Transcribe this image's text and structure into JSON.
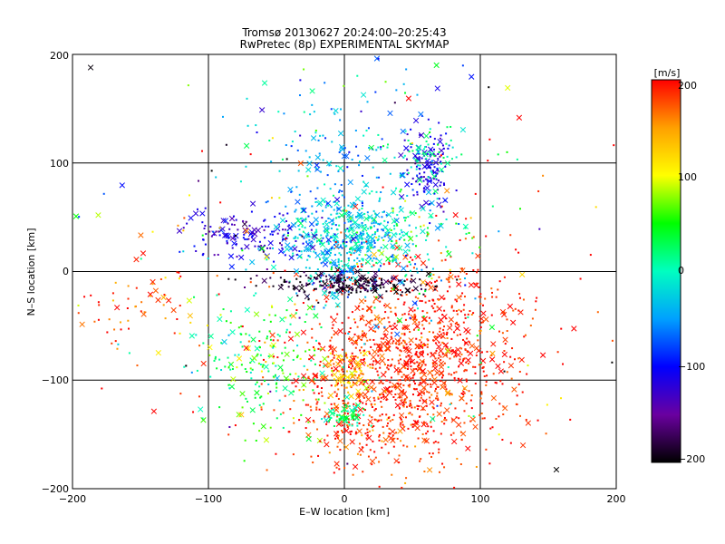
{
  "chart_data": {
    "type": "scatter",
    "title": "Tromsø 20130627 20:24:00–20:25:43",
    "subtitle": "RwPretec (8p) EXPERIMENTAL SKYMAP",
    "xlabel": "E–W location [km]",
    "ylabel": "N–S location [km]",
    "xlim": [
      -200,
      200
    ],
    "ylim": [
      -200,
      200
    ],
    "xticks": [
      -200,
      -100,
      0,
      100,
      200
    ],
    "yticks": [
      -200,
      -100,
      0,
      100,
      200
    ],
    "xtick_labels": [
      "−200",
      "−100",
      "0",
      "100",
      "200"
    ],
    "ytick_labels": [
      "−200",
      "−100",
      "0",
      "100",
      "200"
    ],
    "grid": true,
    "colorbar": {
      "label": "[m/s]",
      "range": [
        -200,
        200
      ],
      "ticks": [
        200,
        100,
        0,
        -100,
        -200
      ],
      "tick_labels": [
        "200",
        "100",
        "0",
        "−100",
        "−200"
      ],
      "colormap": [
        "#000000",
        "#6a00a0",
        "#0000ff",
        "#00a0ff",
        "#00ffc0",
        "#00ff00",
        "#ffff00",
        "#ffa000",
        "#ff0000"
      ]
    },
    "markers": [
      "dot",
      "x"
    ],
    "clusters": [
      {
        "name": "red-southeast",
        "cx": 55,
        "cy": -75,
        "sx": 40,
        "sy": 45,
        "v": 190,
        "vs": 15,
        "n": 900
      },
      {
        "name": "red-south",
        "cx": 20,
        "cy": -120,
        "sx": 35,
        "sy": 40,
        "v": 185,
        "vs": 20,
        "n": 400
      },
      {
        "name": "orange-south",
        "cx": 3,
        "cy": -95,
        "sx": 8,
        "sy": 10,
        "v": 130,
        "vs": 20,
        "n": 80
      },
      {
        "name": "green-south",
        "cx": 2,
        "cy": -133,
        "sx": 7,
        "sy": 5,
        "v": 20,
        "vs": 20,
        "n": 60
      },
      {
        "name": "cyan-center",
        "cx": 0,
        "cy": 25,
        "sx": 22,
        "sy": 22,
        "v": -30,
        "vs": 30,
        "n": 500
      },
      {
        "name": "black-band",
        "cx": 5,
        "cy": -12,
        "sx": 30,
        "sy": 5,
        "v": -185,
        "vs": 15,
        "n": 220
      },
      {
        "name": "blue-northeast",
        "cx": 62,
        "cy": 95,
        "sx": 8,
        "sy": 20,
        "v": -115,
        "vs": 15,
        "n": 130
      },
      {
        "name": "green-northeast",
        "cx": 62,
        "cy": 110,
        "sx": 15,
        "sy": 15,
        "v": 10,
        "vs": 20,
        "n": 60
      },
      {
        "name": "blue-northwest",
        "cx": -70,
        "cy": 35,
        "sx": 25,
        "sy": 12,
        "v": -120,
        "vs": 20,
        "n": 140
      },
      {
        "name": "green-west",
        "cx": -60,
        "cy": -85,
        "sx": 25,
        "sy": 30,
        "v": 40,
        "vs": 40,
        "n": 200
      },
      {
        "name": "cyan-north",
        "cx": -5,
        "cy": 110,
        "sx": 40,
        "sy": 35,
        "v": -50,
        "vs": 30,
        "n": 150
      },
      {
        "name": "red-west",
        "cx": -150,
        "cy": -30,
        "sx": 25,
        "sy": 20,
        "v": 180,
        "vs": 30,
        "n": 60
      },
      {
        "name": "green-east",
        "cx": 40,
        "cy": 30,
        "sx": 30,
        "sy": 20,
        "v": 30,
        "vs": 40,
        "n": 120
      },
      {
        "name": "scatter-bg",
        "cx": 0,
        "cy": 0,
        "sx": 110,
        "sy": 110,
        "v": 50,
        "vs": 150,
        "n": 250
      }
    ]
  }
}
